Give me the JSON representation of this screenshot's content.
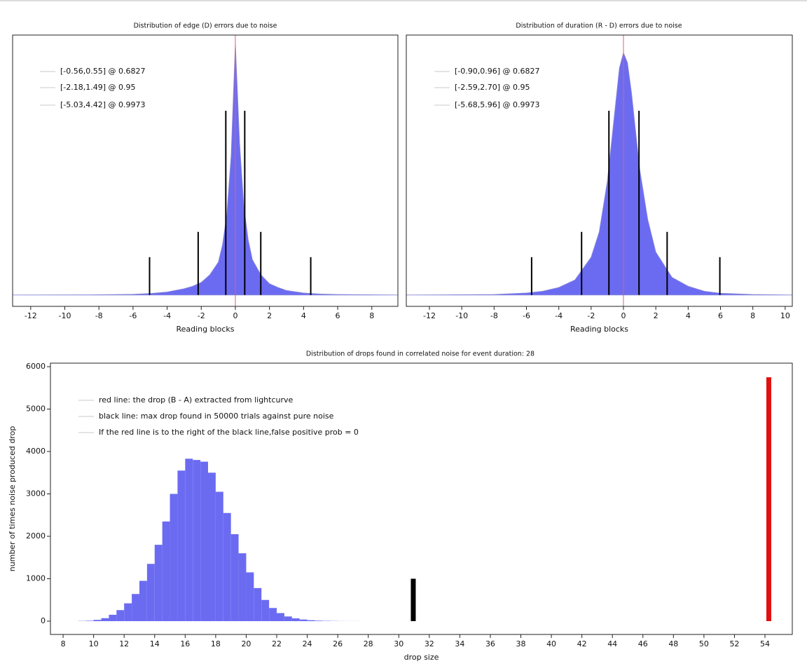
{
  "chart_data": [
    {
      "type": "area",
      "title": "Distribution of edge (D) errors due to noise",
      "xlabel": "Reading blocks",
      "x": [
        -13.06,
        -8,
        -6,
        -5,
        -4,
        -3,
        -2.5,
        -2,
        -1.5,
        -1,
        -0.75,
        -0.5,
        -0.25,
        0,
        0.25,
        0.5,
        0.75,
        1,
        1.5,
        2,
        2.5,
        3,
        4,
        5,
        6,
        9.53
      ],
      "values": [
        0,
        0.001,
        0.003,
        0.006,
        0.012,
        0.025,
        0.035,
        0.05,
        0.08,
        0.13,
        0.2,
        0.32,
        0.55,
        1.0,
        0.6,
        0.35,
        0.22,
        0.14,
        0.08,
        0.045,
        0.03,
        0.018,
        0.008,
        0.004,
        0.002,
        0
      ],
      "color": "#6b6bf2",
      "markers": {
        "x": [
          -5.03,
          -2.18,
          -0.56,
          0.55,
          1.49,
          4.42
        ],
        "values": [
          0.15,
          0.25,
          0.73,
          0.73,
          0.25,
          0.15
        ],
        "color": "#000000"
      },
      "center_line": {
        "x": 0,
        "color": "#e06070"
      },
      "legend": [
        "[-0.56,0.55] @ 0.6827",
        "[-2.18,1.49] @ 0.95",
        "[-5.03,4.42] @ 0.9973"
      ],
      "legend_color": "#c8c8c8",
      "xlim": [
        -13.06,
        9.53
      ],
      "xticks": [
        -12,
        -10,
        -8,
        -6,
        -4,
        -2,
        0,
        2,
        4,
        6,
        8
      ],
      "ylim": [
        -0.045,
        1.03
      ]
    },
    {
      "type": "area",
      "title": "Distribution of duration (R - D) errors due to noise",
      "xlabel": "Reading blocks",
      "x": [
        -13.43,
        -8,
        -6,
        -5,
        -4,
        -3,
        -2,
        -1.5,
        -1,
        -0.5,
        -0.25,
        0,
        0.25,
        0.5,
        1,
        1.5,
        2,
        3,
        4,
        5,
        6,
        8,
        10.44
      ],
      "values": [
        0,
        0.002,
        0.008,
        0.015,
        0.03,
        0.06,
        0.15,
        0.25,
        0.45,
        0.75,
        0.9,
        0.96,
        0.92,
        0.8,
        0.5,
        0.3,
        0.17,
        0.07,
        0.035,
        0.015,
        0.007,
        0.002,
        0
      ],
      "color": "#6b6bf2",
      "markers": {
        "x": [
          -5.68,
          -2.59,
          -0.9,
          0.96,
          2.7,
          5.96
        ],
        "values": [
          0.15,
          0.25,
          0.73,
          0.73,
          0.25,
          0.15
        ],
        "color": "#000000"
      },
      "center_line": {
        "x": 0,
        "color": "#e06070"
      },
      "legend": [
        "[-0.90,0.96] @ 0.6827",
        "[-2.59,2.70] @ 0.95",
        "[-5.68,5.96] @ 0.9973"
      ],
      "legend_color": "#c8c8c8",
      "xlim": [
        -13.43,
        10.44
      ],
      "xticks": [
        -12,
        -10,
        -8,
        -6,
        -4,
        -2,
        0,
        2,
        4,
        6,
        8,
        10
      ],
      "ylim": [
        -0.045,
        1.03
      ]
    },
    {
      "type": "histogram",
      "title": "Distribution of drops found in correlated noise for event duration: 28",
      "xlabel": "drop size",
      "ylabel": "number of times noise produced drop",
      "bins": [
        9.0,
        9.5,
        10.0,
        10.5,
        11.0,
        11.5,
        12.0,
        12.5,
        13.0,
        13.5,
        14.0,
        14.5,
        15.0,
        15.5,
        16.0,
        16.5,
        17.0,
        17.5,
        18.0,
        18.5,
        19.0,
        19.5,
        20.0,
        20.5,
        21.0,
        21.5,
        22.0,
        22.5,
        23.0,
        23.5,
        24.0,
        24.5,
        25.0,
        25.5,
        26.0,
        26.5,
        27.0,
        27.5
      ],
      "values": [
        5,
        10,
        30,
        70,
        150,
        260,
        420,
        640,
        950,
        1350,
        1800,
        2350,
        3000,
        3550,
        3830,
        3800,
        3760,
        3500,
        3050,
        2550,
        2050,
        1600,
        1150,
        780,
        500,
        310,
        190,
        110,
        65,
        38,
        22,
        12,
        7,
        4,
        2,
        1,
        1
      ],
      "color": "#6b6bf2",
      "black_line": {
        "x": 30.95,
        "value": 1000,
        "color": "#000000"
      },
      "red_line": {
        "x": 54.25,
        "value": 5750,
        "color": "#e01010"
      },
      "legend": [
        "red line: the drop (B - A) extracted from lightcurve",
        "black line: max drop found in 50000 trials against pure noise",
        "If the red line is to the right of the black line,false positive prob = 0"
      ],
      "legend_color": "#c8c8c8",
      "xlim": [
        7.17,
        55.79
      ],
      "xticks": [
        8,
        10,
        12,
        14,
        16,
        18,
        20,
        22,
        24,
        26,
        28,
        30,
        32,
        34,
        36,
        38,
        40,
        42,
        44,
        46,
        48,
        50,
        52,
        54
      ],
      "ylim": [
        -314,
        6083
      ],
      "yticks": [
        0,
        1000,
        2000,
        3000,
        4000,
        5000,
        6000
      ]
    }
  ]
}
